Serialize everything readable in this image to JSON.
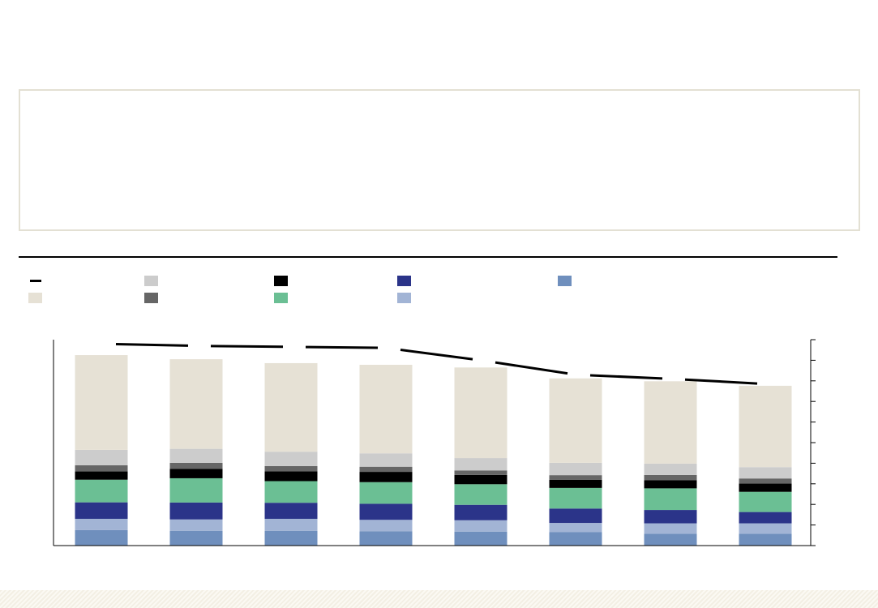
{
  "colors": {
    "box_border": "#e3e0d3",
    "line": "#000000",
    "axis": "#000000"
  },
  "legend": [
    {
      "key": "line-series",
      "label": "",
      "kind": "line",
      "color": "#000000"
    },
    {
      "key": "seg-light-gray",
      "label": "",
      "kind": "box",
      "color": "#cccccc"
    },
    {
      "key": "seg-black",
      "label": "",
      "kind": "box",
      "color": "#000000"
    },
    {
      "key": "seg-navy",
      "label": "",
      "kind": "box",
      "color": "#2b3489"
    },
    {
      "key": "seg-steel-blue",
      "label": "",
      "kind": "box",
      "color": "#6f8fbd"
    },
    {
      "key": "seg-beige",
      "label": "",
      "kind": "box",
      "color": "#e6e1d5"
    },
    {
      "key": "seg-dark-gray",
      "label": "",
      "kind": "box",
      "color": "#666666"
    },
    {
      "key": "seg-green",
      "label": "",
      "kind": "box",
      "color": "#6bbf94"
    },
    {
      "key": "seg-light-blue",
      "label": "",
      "kind": "box",
      "color": "#a2b4d5"
    }
  ],
  "chart_data": {
    "type": "bar",
    "stacked": true,
    "title": "",
    "xlabel": "",
    "ylabel": "",
    "ylim": [
      0,
      10
    ],
    "y_ticks": [
      0,
      1,
      2,
      3,
      4,
      5,
      6,
      7,
      8,
      9,
      10
    ],
    "y_axis_side": "right",
    "legend_position": "top-left",
    "grid": false,
    "categories": [
      "",
      "",
      "",
      "",
      "",
      "",
      "",
      ""
    ],
    "series": [
      {
        "key": "seg-steel-blue",
        "color": "#6f8fbd",
        "values": [
          0.75,
          0.72,
          0.72,
          0.7,
          0.68,
          0.65,
          0.58,
          0.58
        ]
      },
      {
        "key": "seg-light-blue",
        "color": "#a2b4d5",
        "values": [
          0.55,
          0.55,
          0.58,
          0.55,
          0.55,
          0.45,
          0.5,
          0.5
        ]
      },
      {
        "key": "seg-navy",
        "color": "#2b3489",
        "values": [
          0.8,
          0.82,
          0.78,
          0.78,
          0.75,
          0.7,
          0.65,
          0.55
        ]
      },
      {
        "key": "seg-green",
        "color": "#6bbf94",
        "values": [
          1.1,
          1.18,
          1.05,
          1.05,
          1.0,
          1.0,
          1.05,
          0.98
        ]
      },
      {
        "key": "seg-black",
        "color": "#000000",
        "values": [
          0.4,
          0.45,
          0.48,
          0.5,
          0.45,
          0.4,
          0.4,
          0.4
        ]
      },
      {
        "key": "seg-dark-gray",
        "color": "#666666",
        "values": [
          0.3,
          0.3,
          0.25,
          0.25,
          0.22,
          0.22,
          0.25,
          0.25
        ]
      },
      {
        "key": "seg-light-gray",
        "color": "#cccccc",
        "values": [
          0.75,
          0.68,
          0.7,
          0.65,
          0.6,
          0.6,
          0.55,
          0.55
        ]
      },
      {
        "key": "seg-beige",
        "color": "#e6e1d5",
        "values": [
          4.6,
          4.35,
          4.3,
          4.3,
          4.4,
          4.1,
          4.0,
          3.95
        ]
      }
    ],
    "line": {
      "key": "line-series",
      "color": "#000000",
      "values": [
        9.8,
        9.7,
        9.65,
        9.6,
        9.0,
        8.3,
        8.1,
        7.85
      ]
    }
  }
}
